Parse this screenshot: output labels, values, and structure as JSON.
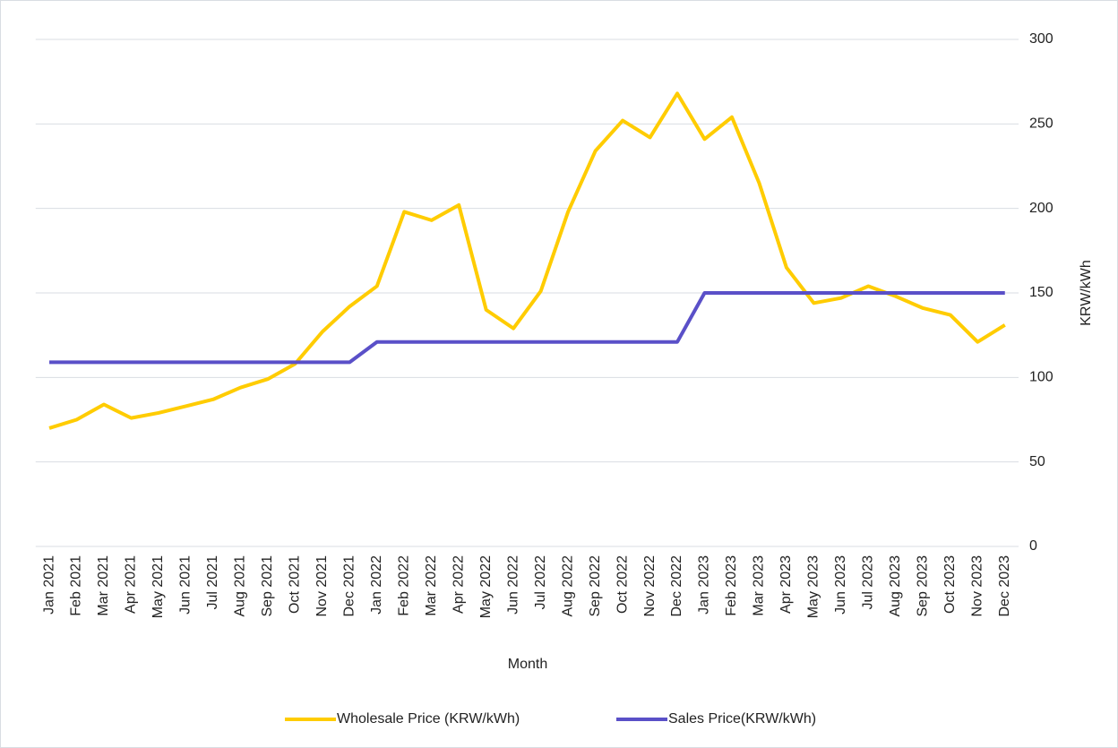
{
  "chart_data": {
    "type": "line",
    "x_label": "Month",
    "y_label": "KRW/kWh",
    "categories": [
      "Jan 2021",
      "Feb 2021",
      "Mar 2021",
      "Apr 2021",
      "May 2021",
      "Jun 2021",
      "Jul 2021",
      "Aug 2021",
      "Sep 2021",
      "Oct 2021",
      "Nov 2021",
      "Dec 2021",
      "Jan 2022",
      "Feb 2022",
      "Mar 2022",
      "Apr 2022",
      "May 2022",
      "Jun 2022",
      "Jul 2022",
      "Aug 2022",
      "Sep 2022",
      "Oct 2022",
      "Nov 2022",
      "Dec 2022",
      "Jan 2023",
      "Feb 2023",
      "Mar 2023",
      "Apr 2023",
      "May 2023",
      "Jun 2023",
      "Jul 2023",
      "Aug 2023",
      "Sep 2023",
      "Oct 2023",
      "Nov 2023",
      "Dec 2023"
    ],
    "series": [
      {
        "name": "Wholesale Price (KRW/kWh)",
        "color": "#ffcc00",
        "values": [
          70,
          75,
          84,
          76,
          79,
          83,
          87,
          94,
          99,
          108,
          127,
          142,
          154,
          198,
          193,
          202,
          140,
          129,
          151,
          198,
          234,
          252,
          242,
          268,
          241,
          254,
          215,
          165,
          144,
          147,
          154,
          148,
          141,
          137,
          121,
          131
        ]
      },
      {
        "name": "Sales Price(KRW/kWh)",
        "color": "#5a50c8",
        "values": [
          109,
          109,
          109,
          109,
          109,
          109,
          109,
          109,
          109,
          109,
          109,
          109,
          121,
          121,
          121,
          121,
          121,
          121,
          121,
          121,
          121,
          121,
          121,
          121,
          150,
          150,
          150,
          150,
          150,
          150,
          150,
          150,
          150,
          150,
          150,
          150
        ]
      }
    ],
    "ylim": [
      0,
      300
    ],
    "yticks": [
      0,
      50,
      100,
      150,
      200,
      250,
      300
    ],
    "y_axis_position": "right",
    "grid": true,
    "legend": "bottom"
  }
}
